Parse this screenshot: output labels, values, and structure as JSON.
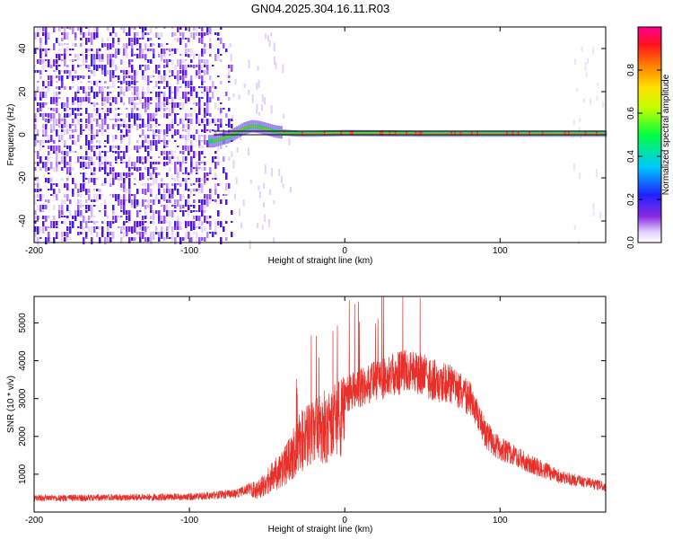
{
  "title": "GN04.2025.304.16.11.R03",
  "chart_data": [
    {
      "type": "heatmap",
      "xlabel": "Height of straight line (km)",
      "ylabel": "Frequency (Hz)",
      "xlim": [
        -200,
        168
      ],
      "ylim": [
        -50,
        50
      ],
      "xticks": [
        -200,
        -100,
        0,
        100
      ],
      "yticks": [
        -40,
        -20,
        0,
        20,
        40
      ],
      "noise_region_x": [
        -200,
        -80
      ],
      "signal_trace": {
        "x": [
          -85,
          -80,
          -75,
          -70,
          -65,
          -60,
          -55,
          -50,
          -45,
          -40,
          -30,
          -20,
          0,
          50,
          100,
          168
        ],
        "frequency": [
          -3,
          -2,
          -1,
          1,
          3,
          4,
          3.5,
          2.5,
          1.5,
          1,
          0.5,
          0.5,
          0.8,
          0.5,
          0.5,
          0.5
        ]
      },
      "colorbar": {
        "label": "Normalized spectral amplitude",
        "range": [
          0,
          1
        ],
        "ticks": [
          0.0,
          0.2,
          0.4,
          0.6,
          0.8
        ]
      }
    },
    {
      "type": "line",
      "xlabel": "Height of straight line (km)",
      "ylabel": "SNR (10 * v/v)",
      "xlim": [
        -200,
        168
      ],
      "ylim": [
        0,
        5700
      ],
      "xticks": [
        -200,
        -100,
        0,
        100
      ],
      "yticks": [
        1000,
        2000,
        3000,
        4000,
        5000
      ],
      "series": [
        {
          "name": "SNR",
          "color": "#e8302b",
          "envelope_x": [
            -200,
            -100,
            -70,
            -55,
            -45,
            -35,
            -30,
            -20,
            -10,
            0,
            10,
            20,
            30,
            40,
            50,
            60,
            70,
            80,
            90,
            100,
            120,
            140,
            168
          ],
          "envelope_y": [
            450,
            500,
            600,
            900,
            1400,
            2000,
            2600,
            3000,
            3300,
            3600,
            3800,
            4000,
            4200,
            4300,
            4200,
            4000,
            3900,
            3500,
            2500,
            2000,
            1500,
            1100,
            800
          ]
        }
      ]
    }
  ]
}
